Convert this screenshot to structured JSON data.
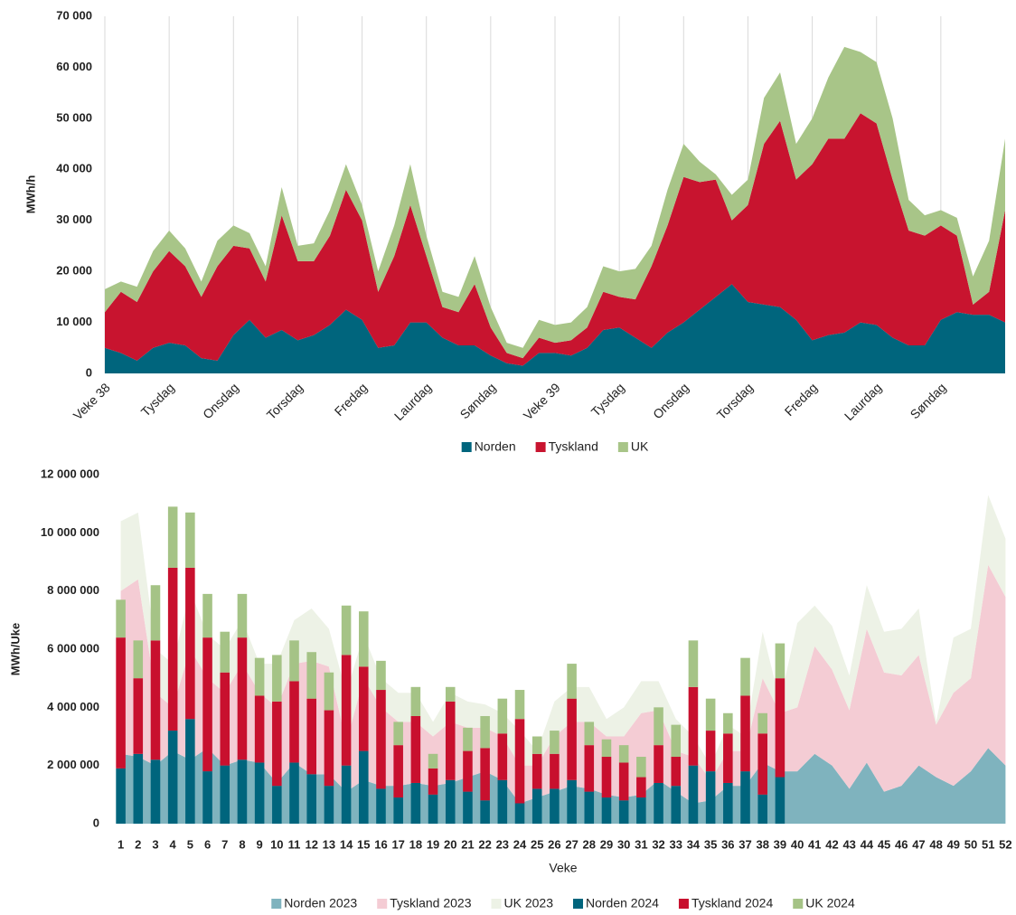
{
  "chart_data": [
    {
      "type": "area",
      "ylabel": "MWh/h",
      "grid": "x",
      "categories": [
        "Veke 38",
        null,
        null,
        null,
        "Tysdag",
        null,
        null,
        null,
        "Onsdag",
        null,
        null,
        null,
        "Torsdag",
        null,
        null,
        null,
        "Fredag",
        null,
        null,
        null,
        "Laurdag",
        null,
        null,
        null,
        "Søndag",
        null,
        null,
        null,
        "Veke 39",
        null,
        null,
        null,
        "Tysdag",
        null,
        null,
        null,
        "Onsdag",
        null,
        null,
        null,
        "Torsdag",
        null,
        null,
        null,
        "Fredag",
        null,
        null,
        null,
        "Laurdag",
        null,
        null,
        null,
        "Søndag",
        null,
        null,
        null,
        null
      ],
      "ylim": [
        0,
        70000
      ],
      "yticks": [
        0,
        {
          "value": 10000,
          "label": "10 000"
        },
        {
          "value": 20000,
          "label": "20 000"
        },
        {
          "value": 30000,
          "label": "30 000"
        },
        {
          "value": 40000,
          "label": "40 000"
        },
        {
          "value": 50000,
          "label": "50 000"
        },
        {
          "value": 60000,
          "label": "60 000"
        },
        {
          "value": 70000,
          "label": "70 000"
        }
      ],
      "series": [
        {
          "name": "Norden",
          "color": "#00657d",
          "values": [
            5000,
            4000,
            2500,
            5000,
            6000,
            5500,
            3000,
            2500,
            7500,
            10500,
            7000,
            8500,
            6500,
            7500,
            9500,
            12500,
            10500,
            5000,
            5500,
            10000,
            10000,
            7000,
            5500,
            5500,
            3500,
            2000,
            1500,
            4000,
            4000,
            3500,
            5000,
            8500,
            9000,
            7000,
            5000,
            8000,
            10000,
            12500,
            15000,
            17500,
            14000,
            13500,
            13000,
            10500,
            6500,
            7500,
            8000,
            10000,
            9500,
            7000,
            5500,
            5500,
            10500,
            12000,
            11500,
            11500,
            10000
          ]
        },
        {
          "name": "Tyskland",
          "color": "#c8142f",
          "values": [
            7000,
            12000,
            11500,
            15000,
            18000,
            15500,
            12000,
            18500,
            17500,
            14000,
            11000,
            22500,
            15500,
            14500,
            17500,
            23500,
            19500,
            11000,
            17500,
            23000,
            13000,
            6000,
            6500,
            12000,
            5500,
            2000,
            1500,
            3000,
            2000,
            3000,
            4000,
            7500,
            6000,
            7500,
            16000,
            21000,
            28500,
            25000,
            23000,
            12500,
            19000,
            31500,
            36500,
            27500,
            34500,
            38500,
            38000,
            41000,
            39500,
            31000,
            22500,
            21500,
            18500,
            15000,
            2000,
            4500,
            22000
          ]
        },
        {
          "name": "UK",
          "color": "#a8c588",
          "values": [
            4500,
            2000,
            3000,
            4000,
            4000,
            3500,
            3000,
            5000,
            4000,
            3000,
            3000,
            5500,
            3000,
            3500,
            5000,
            5000,
            3000,
            4000,
            6000,
            8000,
            4000,
            3000,
            3000,
            5500,
            4000,
            2000,
            2000,
            3500,
            3500,
            3500,
            4000,
            5000,
            5000,
            6000,
            4000,
            7000,
            6500,
            4000,
            1000,
            5000,
            5000,
            9000,
            9500,
            7000,
            9000,
            12000,
            18000,
            12000,
            12000,
            12000,
            6000,
            4000,
            3000,
            3500,
            5500,
            10000,
            14000
          ]
        }
      ]
    },
    {
      "type": "combo",
      "ylabel": "MWh/Uke",
      "xlabel": "Veke",
      "categories": [
        "1",
        "2",
        "3",
        "4",
        "5",
        "6",
        "7",
        "8",
        "9",
        "10",
        "11",
        "12",
        "13",
        "14",
        "15",
        "16",
        "17",
        "18",
        "19",
        "20",
        "21",
        "22",
        "23",
        "24",
        "25",
        "26",
        "27",
        "28",
        "29",
        "30",
        "31",
        "32",
        "33",
        "34",
        "35",
        "36",
        "37",
        "38",
        "39",
        "40",
        "41",
        "42",
        "43",
        "44",
        "45",
        "46",
        "47",
        "48",
        "49",
        "50",
        "51",
        "52"
      ],
      "ylim": [
        0,
        12000000
      ],
      "yticks": [
        0,
        {
          "value": 2000000,
          "label": "2 000 000"
        },
        {
          "value": 4000000,
          "label": "4 000 000"
        },
        {
          "value": 6000000,
          "label": "6 000 000"
        },
        {
          "value": 8000000,
          "label": "8 000 000"
        },
        {
          "value": 10000000,
          "label": "10 000 000"
        },
        {
          "value": 12000000,
          "label": "12 000 000"
        }
      ],
      "series": [
        {
          "name": "Norden 2023",
          "type": "area",
          "color": "#7fb3be",
          "values": [
            2400000,
            2300000,
            2000000,
            2500000,
            2200000,
            2600000,
            2000000,
            2200000,
            2100000,
            1400000,
            2100000,
            1700000,
            1700000,
            1100000,
            1500000,
            1300000,
            1300000,
            1400000,
            1300000,
            1400000,
            1600000,
            1800000,
            1500000,
            700000,
            900000,
            1100000,
            1300000,
            1200000,
            1000000,
            900000,
            1000000,
            1500000,
            1100000,
            700000,
            800000,
            1300000,
            1300000,
            2100000,
            1800000,
            1800000,
            2400000,
            2000000,
            1200000,
            2100000,
            1100000,
            1300000,
            2000000,
            1600000,
            1300000,
            1800000,
            2600000,
            2000000
          ]
        },
        {
          "name": "Tyskland 2023",
          "type": "area",
          "color": "#f4ccd4",
          "values": [
            5600000,
            6100000,
            2500000,
            1500000,
            3800000,
            2400000,
            2500000,
            3300000,
            2400000,
            2600000,
            3400000,
            3900000,
            3700000,
            1700000,
            3500000,
            2700000,
            2200000,
            2100000,
            1700000,
            2100000,
            1700000,
            1500000,
            1500000,
            1300000,
            1100000,
            1900000,
            2200000,
            2300000,
            2000000,
            2100000,
            2800000,
            2400000,
            1400000,
            1600000,
            700000,
            1200000,
            1200000,
            2900000,
            2000000,
            2200000,
            3700000,
            3300000,
            2700000,
            4600000,
            4100000,
            3800000,
            3800000,
            1800000,
            3200000,
            3200000,
            6300000,
            5800000
          ]
        },
        {
          "name": "UK 2023",
          "type": "area",
          "color": "#edf2e6",
          "values": [
            2400000,
            2300000,
            1500000,
            1500000,
            2000000,
            1500000,
            1500000,
            1500000,
            1000000,
            1500000,
            1500000,
            1800000,
            1300000,
            1700000,
            1500000,
            1000000,
            1000000,
            1000000,
            500000,
            1000000,
            900000,
            800000,
            800000,
            1200000,
            500000,
            1200000,
            1200000,
            1200000,
            600000,
            1000000,
            1100000,
            1000000,
            1100000,
            700000,
            500000,
            900000,
            500000,
            1600000,
            400000,
            2900000,
            1400000,
            1500000,
            1200000,
            1500000,
            1400000,
            1600000,
            1600000,
            100000,
            1900000,
            1700000,
            2400000,
            2000000
          ]
        },
        {
          "name": "Norden 2024",
          "type": "bar",
          "color": "#00657d",
          "values": [
            1900000,
            2400000,
            2200000,
            3200000,
            3600000,
            1800000,
            2000000,
            2200000,
            2100000,
            1300000,
            2100000,
            1700000,
            1300000,
            2000000,
            2500000,
            1200000,
            900000,
            1400000,
            1000000,
            1500000,
            1100000,
            800000,
            1500000,
            700000,
            1200000,
            1200000,
            1500000,
            1100000,
            900000,
            800000,
            900000,
            1400000,
            1300000,
            2000000,
            1800000,
            1400000,
            1800000,
            1000000,
            1600000,
            null,
            null,
            null,
            null,
            null,
            null,
            null,
            null,
            null,
            null,
            null,
            null,
            null
          ]
        },
        {
          "name": "Tyskland 2024",
          "type": "bar",
          "color": "#c8102e",
          "values": [
            4500000,
            2600000,
            4100000,
            5600000,
            5200000,
            4600000,
            3200000,
            4200000,
            2300000,
            2900000,
            2800000,
            2600000,
            2600000,
            3800000,
            2900000,
            3400000,
            1800000,
            2300000,
            900000,
            2700000,
            1400000,
            1800000,
            1600000,
            2900000,
            1200000,
            1200000,
            2800000,
            1600000,
            1400000,
            1300000,
            700000,
            1300000,
            1000000,
            2700000,
            1400000,
            1700000,
            2600000,
            2100000,
            3400000,
            null,
            null,
            null,
            null,
            null,
            null,
            null,
            null,
            null,
            null,
            null,
            null,
            null
          ]
        },
        {
          "name": "UK 2024",
          "type": "bar",
          "color": "#a5c386",
          "values": [
            1300000,
            1300000,
            1900000,
            2100000,
            1900000,
            1500000,
            1400000,
            1500000,
            1300000,
            1600000,
            1400000,
            1600000,
            1300000,
            1700000,
            1900000,
            1000000,
            800000,
            1000000,
            500000,
            500000,
            800000,
            1100000,
            1200000,
            1000000,
            600000,
            800000,
            1200000,
            800000,
            600000,
            600000,
            700000,
            1300000,
            1100000,
            1600000,
            1100000,
            700000,
            1300000,
            700000,
            1200000,
            null,
            null,
            null,
            null,
            null,
            null,
            null,
            null,
            null,
            null,
            null,
            null,
            null
          ]
        }
      ]
    }
  ]
}
